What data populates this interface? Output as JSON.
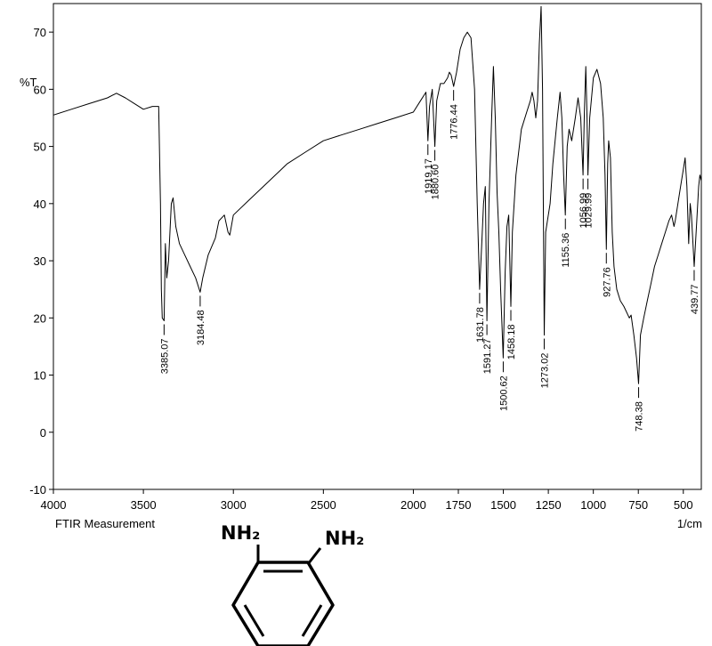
{
  "chart_data": {
    "type": "line",
    "ylabel": "%T",
    "xunit": "1/cm",
    "footer": "FTIR Measurement",
    "xlim": [
      4000,
      400
    ],
    "ylim": [
      -10,
      75
    ],
    "xticks": [
      4000,
      3500,
      3000,
      2500,
      2000,
      1750,
      1500,
      1250,
      1000,
      750,
      500
    ],
    "yticks": [
      -10,
      0,
      10,
      20,
      30,
      40,
      50,
      60,
      70
    ],
    "grid": false,
    "series": [
      {
        "color": "#000000",
        "points": [
          [
            4000,
            55.5
          ],
          [
            3900,
            56.5
          ],
          [
            3800,
            57.5
          ],
          [
            3700,
            58.5
          ],
          [
            3650,
            59.3
          ],
          [
            3600,
            58.5
          ],
          [
            3550,
            57.5
          ],
          [
            3500,
            56.5
          ],
          [
            3450,
            57
          ],
          [
            3415,
            57
          ],
          [
            3405,
            40
          ],
          [
            3400,
            25
          ],
          [
            3395,
            20
          ],
          [
            3385.07,
            19.5
          ],
          [
            3378,
            33
          ],
          [
            3370,
            27
          ],
          [
            3360,
            30
          ],
          [
            3345,
            40
          ],
          [
            3335,
            41
          ],
          [
            3320,
            36
          ],
          [
            3300,
            33
          ],
          [
            3270,
            31
          ],
          [
            3240,
            29
          ],
          [
            3210,
            27
          ],
          [
            3184.48,
            24.5
          ],
          [
            3170,
            27
          ],
          [
            3140,
            31
          ],
          [
            3100,
            34
          ],
          [
            3080,
            37
          ],
          [
            3050,
            38
          ],
          [
            3030,
            35
          ],
          [
            3020,
            34.5
          ],
          [
            3000,
            38
          ],
          [
            2900,
            41
          ],
          [
            2800,
            44
          ],
          [
            2700,
            47
          ],
          [
            2600,
            49
          ],
          [
            2500,
            51
          ],
          [
            2400,
            52
          ],
          [
            2300,
            53
          ],
          [
            2200,
            54
          ],
          [
            2100,
            55
          ],
          [
            2000,
            56
          ],
          [
            1960,
            58
          ],
          [
            1930,
            59.5
          ],
          [
            1919.17,
            51
          ],
          [
            1910,
            57
          ],
          [
            1895,
            60
          ],
          [
            1880.6,
            50
          ],
          [
            1870,
            58
          ],
          [
            1850,
            61
          ],
          [
            1830,
            61
          ],
          [
            1810,
            62
          ],
          [
            1800,
            63
          ],
          [
            1790,
            62.5
          ],
          [
            1776.44,
            60.5
          ],
          [
            1760,
            63
          ],
          [
            1740,
            67
          ],
          [
            1720,
            69
          ],
          [
            1700,
            70
          ],
          [
            1680,
            69
          ],
          [
            1660,
            60
          ],
          [
            1645,
            40
          ],
          [
            1631.78,
            25
          ],
          [
            1620,
            33
          ],
          [
            1610,
            40
          ],
          [
            1600,
            43
          ],
          [
            1591.27,
            19.5
          ],
          [
            1580,
            40
          ],
          [
            1565,
            55
          ],
          [
            1555,
            64
          ],
          [
            1545,
            55
          ],
          [
            1535,
            42
          ],
          [
            1525,
            35
          ],
          [
            1515,
            25
          ],
          [
            1500.62,
            13
          ],
          [
            1490,
            28
          ],
          [
            1480,
            36
          ],
          [
            1470,
            38
          ],
          [
            1458.18,
            22
          ],
          [
            1450,
            35
          ],
          [
            1430,
            45
          ],
          [
            1400,
            53
          ],
          [
            1370,
            56
          ],
          [
            1350,
            58
          ],
          [
            1340,
            59.5
          ],
          [
            1330,
            58
          ],
          [
            1320,
            55
          ],
          [
            1310,
            58
          ],
          [
            1300,
            68
          ],
          [
            1290,
            74.5
          ],
          [
            1282,
            60
          ],
          [
            1273.02,
            17
          ],
          [
            1265,
            35
          ],
          [
            1255,
            37
          ],
          [
            1240,
            40
          ],
          [
            1225,
            47
          ],
          [
            1200,
            55
          ],
          [
            1185,
            59.5
          ],
          [
            1175,
            55
          ],
          [
            1165,
            45
          ],
          [
            1155.36,
            38
          ],
          [
            1145,
            50
          ],
          [
            1135,
            53
          ],
          [
            1120,
            51
          ],
          [
            1100,
            55
          ],
          [
            1085,
            58.5
          ],
          [
            1070,
            55
          ],
          [
            1056.99,
            45
          ],
          [
            1050,
            56
          ],
          [
            1042,
            64
          ],
          [
            1035,
            55
          ],
          [
            1029.99,
            45
          ],
          [
            1020,
            55
          ],
          [
            1000,
            62
          ],
          [
            980,
            63.5
          ],
          [
            960,
            61
          ],
          [
            945,
            55
          ],
          [
            935,
            45
          ],
          [
            927.76,
            32
          ],
          [
            920,
            47
          ],
          [
            915,
            51
          ],
          [
            905,
            48
          ],
          [
            895,
            35
          ],
          [
            885,
            29
          ],
          [
            870,
            25
          ],
          [
            850,
            23
          ],
          [
            830,
            22
          ],
          [
            800,
            20
          ],
          [
            790,
            20.5
          ],
          [
            775,
            17
          ],
          [
            760,
            13
          ],
          [
            748.38,
            8.5
          ],
          [
            738,
            17
          ],
          [
            720,
            20
          ],
          [
            700,
            23
          ],
          [
            680,
            26
          ],
          [
            660,
            29
          ],
          [
            640,
            31
          ],
          [
            620,
            33
          ],
          [
            600,
            35
          ],
          [
            580,
            37
          ],
          [
            565,
            38
          ],
          [
            552,
            36
          ],
          [
            545,
            37
          ],
          [
            530,
            40
          ],
          [
            515,
            43
          ],
          [
            500,
            46
          ],
          [
            490,
            48
          ],
          [
            480,
            43
          ],
          [
            470,
            33
          ],
          [
            462,
            40
          ],
          [
            455,
            38
          ],
          [
            439.77,
            29
          ],
          [
            425,
            37
          ],
          [
            415,
            43
          ],
          [
            408,
            45
          ],
          [
            400,
            44
          ]
        ]
      }
    ],
    "peaks": [
      {
        "x": 3385.07,
        "label": "3385.07"
      },
      {
        "x": 3184.48,
        "label": "3184.48"
      },
      {
        "x": 1919.17,
        "label": "1919.17"
      },
      {
        "x": 1880.6,
        "label": "1880.60"
      },
      {
        "x": 1776.44,
        "label": "1776.44"
      },
      {
        "x": 1631.78,
        "label": "1631.78"
      },
      {
        "x": 1591.27,
        "label": "1591.27"
      },
      {
        "x": 1500.62,
        "label": "1500.62"
      },
      {
        "x": 1458.18,
        "label": "1458.18"
      },
      {
        "x": 1273.02,
        "label": "1273.02"
      },
      {
        "x": 1155.36,
        "label": "1155.36"
      },
      {
        "x": 1056.99,
        "label": "1056.99"
      },
      {
        "x": 1029.99,
        "label": "1029.99"
      },
      {
        "x": 927.76,
        "label": "927.76"
      },
      {
        "x": 748.38,
        "label": "748.38"
      },
      {
        "x": 439.77,
        "label": "439.77"
      }
    ]
  },
  "structure": {
    "label_left": "NH₂",
    "label_right": "NH₂"
  }
}
